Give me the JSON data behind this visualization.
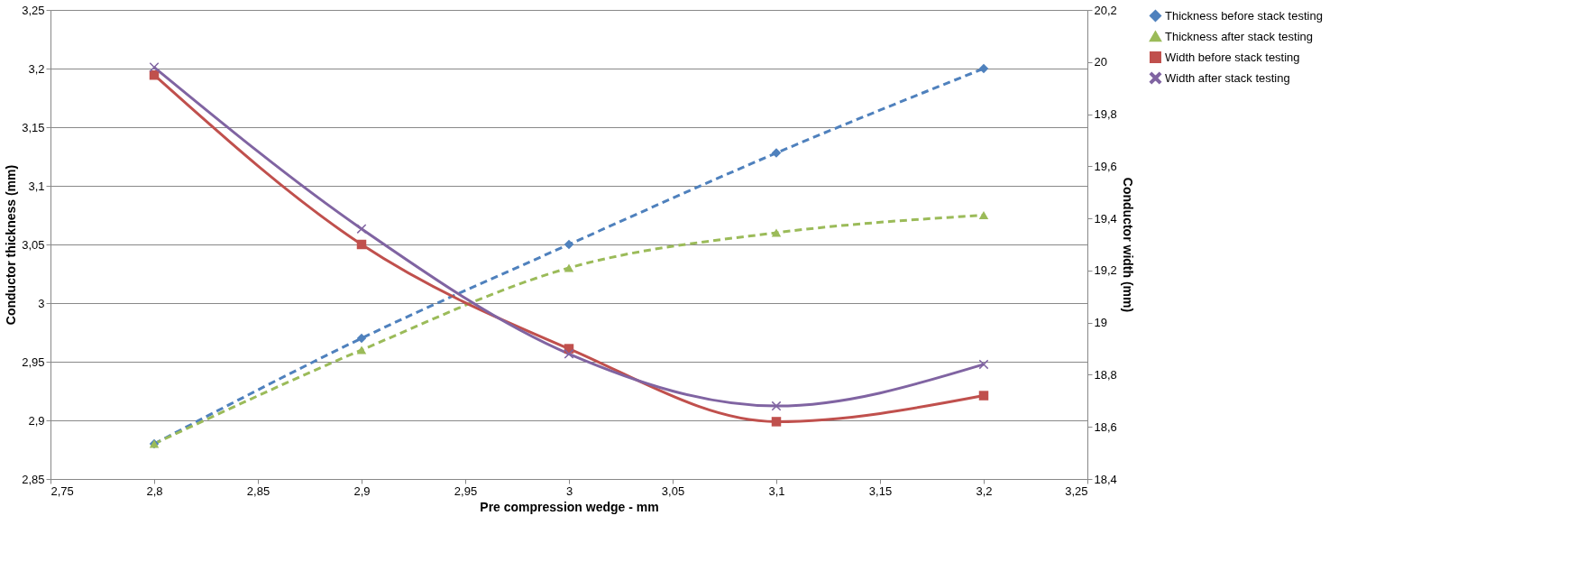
{
  "chart_data": {
    "type": "line",
    "xlabel": "Pre compression wedge - mm",
    "ylabel": "Conductor thickness (mm)",
    "y2label": "Conductor width (mm)",
    "x": [
      2.8,
      2.9,
      3.0,
      3.1,
      3.2
    ],
    "series": [
      {
        "name": "Thickness before stack testing",
        "color": "#4f81bd",
        "values": [
          2.88,
          2.97,
          3.05,
          3.128,
          3.2
        ],
        "marker": "diamond",
        "line_style": "dashed"
      },
      {
        "name": "Thickness after stack testing",
        "color": "#9bbb59",
        "values": [
          2.88,
          2.96,
          3.03,
          3.06,
          3.075
        ],
        "marker": "triangle",
        "line_style": "dashed"
      },
      {
        "name": "Width before stack testing",
        "color": "#c0504d",
        "values": [
          19.95,
          19.3,
          18.9,
          18.62,
          18.72
        ],
        "marker": "square",
        "line_style": "solid",
        "axis": "y2"
      },
      {
        "name": "Width after stack testing",
        "color": "#8064a2",
        "values": [
          19.98,
          19.36,
          18.88,
          18.68,
          18.84
        ],
        "marker": "cross",
        "line_style": "solid",
        "axis": "y2"
      }
    ],
    "xlim": [
      2.75,
      3.25
    ],
    "xticks": [
      {
        "value": 2.75,
        "label": "2,75"
      },
      {
        "value": 2.8,
        "label": "2,8"
      },
      {
        "value": 2.85,
        "label": "2,85"
      },
      {
        "value": 2.9,
        "label": "2,9"
      },
      {
        "value": 2.95,
        "label": "2,95"
      },
      {
        "value": 3,
        "label": "3"
      },
      {
        "value": 3.05,
        "label": "3,05"
      },
      {
        "value": 3.1,
        "label": "3,1"
      },
      {
        "value": 3.15,
        "label": "3,15"
      },
      {
        "value": 3.2,
        "label": "3,2"
      },
      {
        "value": 3.25,
        "label": "3,25"
      }
    ],
    "ylim": [
      2.85,
      3.25
    ],
    "yticks": [
      {
        "value": 2.85,
        "label": "2,85"
      },
      {
        "value": 2.9,
        "label": "2,9"
      },
      {
        "value": 2.95,
        "label": "2,95"
      },
      {
        "value": 3,
        "label": "3"
      },
      {
        "value": 3.05,
        "label": "3,05"
      },
      {
        "value": 3.1,
        "label": "3,1"
      },
      {
        "value": 3.15,
        "label": "3,15"
      },
      {
        "value": 3.2,
        "label": "3,2"
      },
      {
        "value": 3.25,
        "label": "3,25"
      }
    ],
    "y2lim": [
      18.4,
      20.2
    ],
    "y2ticks": [
      {
        "value": 18.4,
        "label": "18,4"
      },
      {
        "value": 18.6,
        "label": "18,6"
      },
      {
        "value": 18.8,
        "label": "18,8"
      },
      {
        "value": 19,
        "label": "19"
      },
      {
        "value": 19.2,
        "label": "19,2"
      },
      {
        "value": 19.4,
        "label": "19,4"
      },
      {
        "value": 19.6,
        "label": "19,6"
      },
      {
        "value": 19.8,
        "label": "19,8"
      },
      {
        "value": 20,
        "label": "20"
      },
      {
        "value": 20.2,
        "label": "20,2"
      }
    ],
    "grid": "y",
    "legend": "right"
  }
}
